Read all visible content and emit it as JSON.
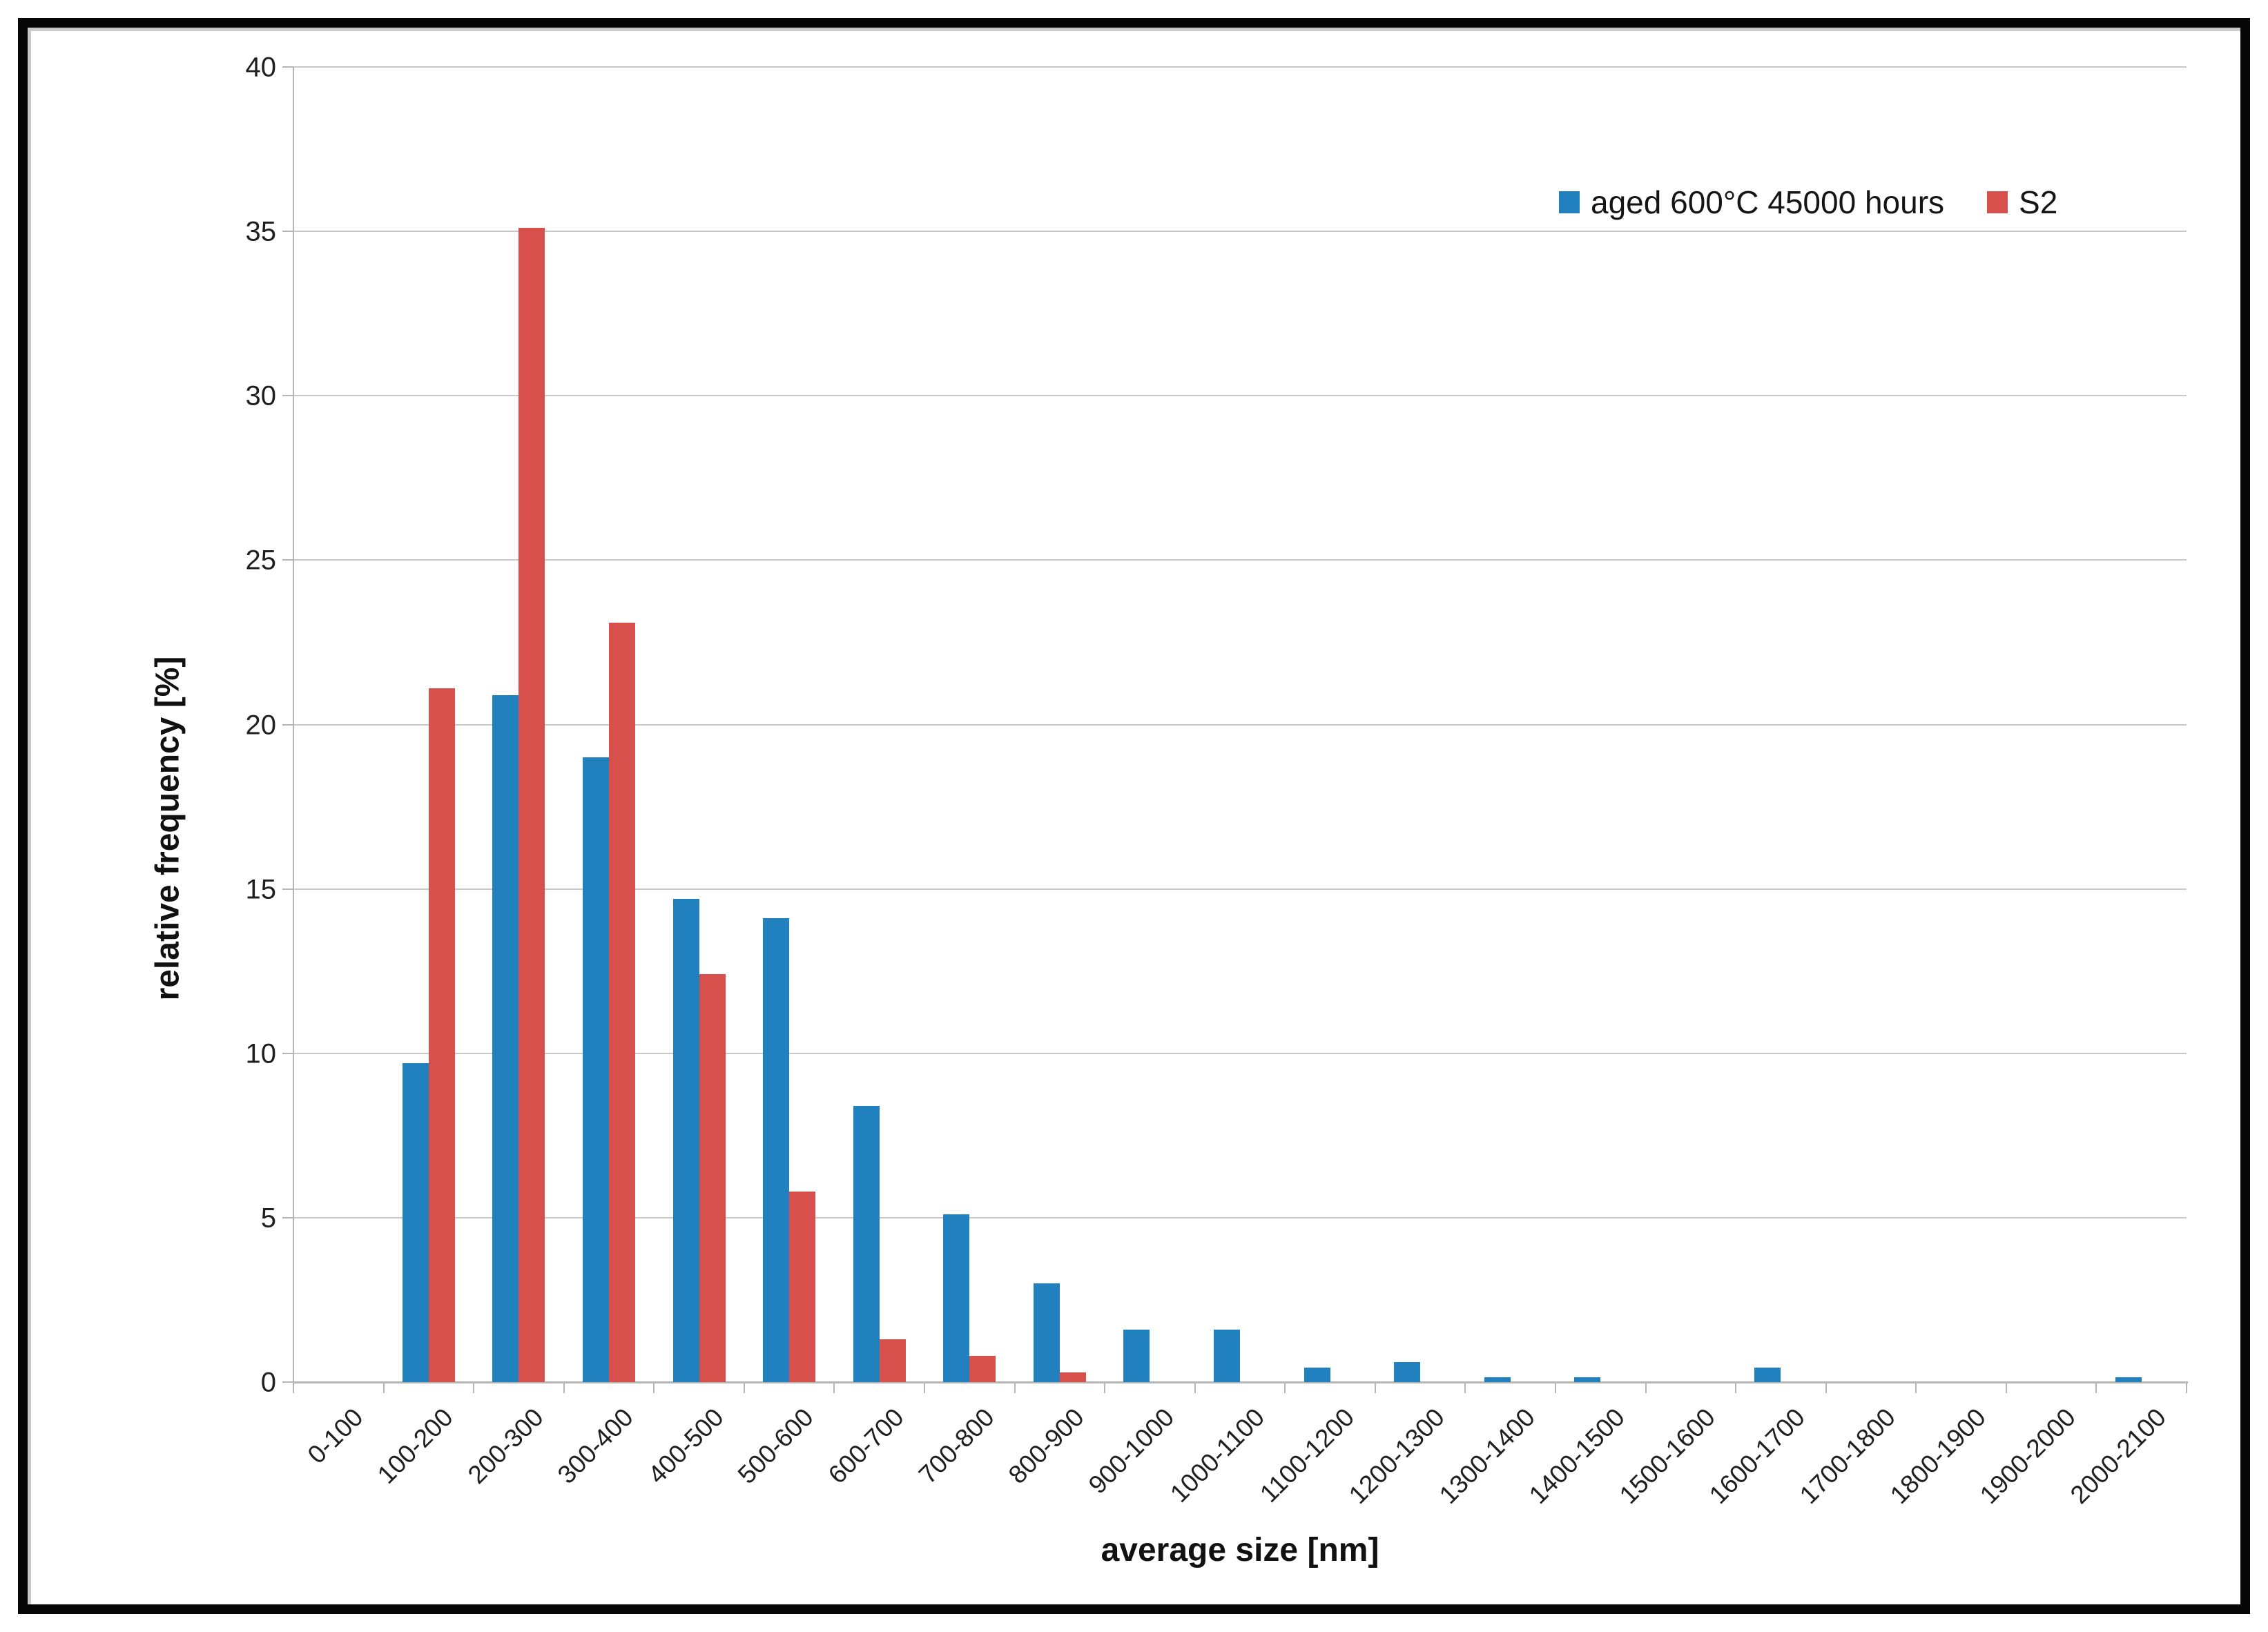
{
  "chart_data": {
    "type": "bar",
    "title": "",
    "xlabel": "average size [nm]",
    "ylabel": "relative frequency [%]",
    "ylim": [
      0,
      40
    ],
    "ytick_step": 5,
    "grid": true,
    "legend_position": "top-right",
    "categories": [
      "0-100",
      "100-200",
      "200-300",
      "300-400",
      "400-500",
      "500-600",
      "600-700",
      "700-800",
      "800-900",
      "900-1000",
      "1000-1100",
      "1100-1200",
      "1200-1300",
      "1300-1400",
      "1400-1500",
      "1500-1600",
      "1600-1700",
      "1700-1800",
      "1800-1900",
      "1900-2000",
      "2000-2100"
    ],
    "series": [
      {
        "name": "aged 600°C 45000 hours",
        "color": "#2181BF",
        "values": [
          0,
          9.7,
          20.9,
          19.0,
          14.7,
          14.1,
          8.4,
          5.1,
          3.0,
          1.6,
          1.6,
          0.45,
          0.6,
          0.15,
          0.15,
          0,
          0.45,
          0,
          0,
          0,
          0.15
        ]
      },
      {
        "name": "S2",
        "color": "#D8504B",
        "values": [
          0,
          21.1,
          35.1,
          23.1,
          12.4,
          5.8,
          1.3,
          0.8,
          0.3,
          0,
          0,
          0,
          0,
          0,
          0,
          0,
          0,
          0,
          0,
          0,
          0
        ]
      }
    ]
  },
  "colors": {
    "gridline": "#c9c9c9",
    "axis": "#b5b5b5",
    "text": "#1f1f1f"
  }
}
